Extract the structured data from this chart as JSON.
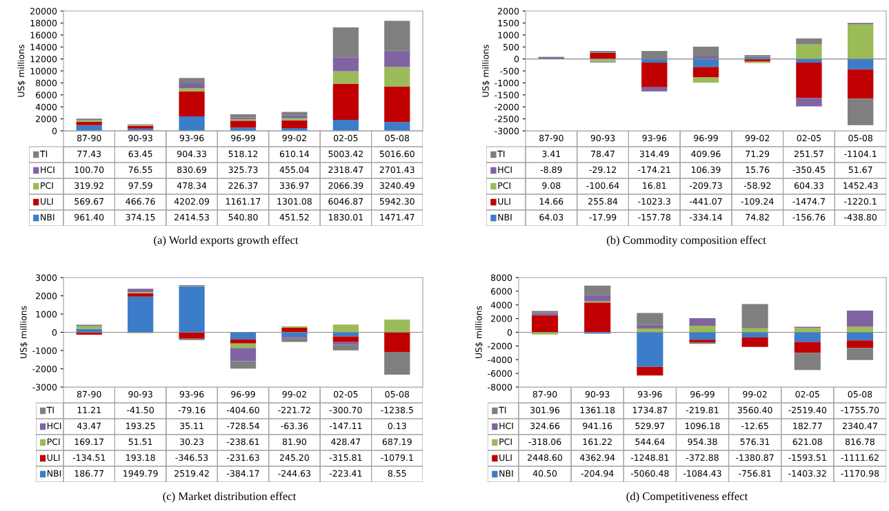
{
  "chart_data": [
    {
      "type": "bar",
      "stacked": true,
      "legend": "bottom left",
      "title": "(a) World exports growth effect",
      "ylabel": "US$ millions",
      "categories": [
        "87-90",
        "90-93",
        "93-96",
        "96-99",
        "99-02",
        "02-05",
        "05-08"
      ],
      "ylim": [
        0,
        20000
      ],
      "yticks": [
        0,
        2000,
        4000,
        6000,
        8000,
        10000,
        12000,
        14000,
        16000,
        18000,
        20000
      ],
      "series": [
        {
          "name": "NBI",
          "color": "#3c7dc9",
          "values": [
            961.4,
            374.15,
            2414.53,
            540.8,
            451.52,
            1830.01,
            1471.47
          ],
          "value_labels": [
            "961.40",
            "374.15",
            "2414.53",
            "540.80",
            "451.52",
            "1830.01",
            "1471.47"
          ]
        },
        {
          "name": "ULI",
          "color": "#c00000",
          "values": [
            569.67,
            466.76,
            4202.09,
            1161.17,
            1301.08,
            6046.87,
            5942.3
          ],
          "value_labels": [
            "569.67",
            "466.76",
            "4202.09",
            "1161.17",
            "1301.08",
            "6046.87",
            "5942.30"
          ]
        },
        {
          "name": "PCI",
          "color": "#9bbb59",
          "values": [
            319.92,
            97.59,
            478.34,
            226.37,
            336.97,
            2066.39,
            3240.49
          ],
          "value_labels": [
            "319.92",
            "97.59",
            "478.34",
            "226.37",
            "336.97",
            "2066.39",
            "3240.49"
          ]
        },
        {
          "name": "HCI",
          "color": "#8064a2",
          "values": [
            100.7,
            76.55,
            830.69,
            325.73,
            455.04,
            2318.47,
            2701.43
          ],
          "value_labels": [
            "100.70",
            "76.55",
            "830.69",
            "325.73",
            "455.04",
            "2318.47",
            "2701.43"
          ]
        },
        {
          "name": "TI",
          "color": "#7f7f7f",
          "values": [
            77.43,
            63.45,
            904.33,
            518.12,
            610.14,
            5003.42,
            5016.6
          ],
          "value_labels": [
            "77.43",
            "63.45",
            "904.33",
            "518.12",
            "610.14",
            "5003.42",
            "5016.60"
          ]
        }
      ]
    },
    {
      "type": "bar",
      "stacked": true,
      "legend": "bottom left",
      "title": "(b) Commodity composition effect",
      "ylabel": "US$ millions",
      "categories": [
        "87-90",
        "90-93",
        "93-96",
        "96-99",
        "99-02",
        "02-05",
        "05-08"
      ],
      "ylim": [
        -3000,
        2000
      ],
      "yticks": [
        -3000,
        -2500,
        -2000,
        -1500,
        -1000,
        -500,
        0,
        500,
        1000,
        1500,
        2000
      ],
      "series": [
        {
          "name": "NBI",
          "color": "#3c7dc9",
          "values": [
            64.03,
            -17.99,
            -157.78,
            -334.14,
            74.82,
            -156.76,
            -438.8
          ],
          "value_labels": [
            "64.03",
            "-17.99",
            "-157.78",
            "-334.14",
            "74.82",
            "-156.76",
            "-438.80"
          ]
        },
        {
          "name": "ULI",
          "color": "#c00000",
          "values": [
            14.66,
            255.84,
            -1023.3,
            -441.07,
            -109.24,
            -1474.7,
            -1220.1
          ],
          "value_labels": [
            "14.66",
            "255.84",
            "-1023.3",
            "-441.07",
            "-109.24",
            "-1474.7",
            "-1220.1"
          ]
        },
        {
          "name": "PCI",
          "color": "#9bbb59",
          "values": [
            9.08,
            -100.64,
            16.81,
            -209.73,
            -58.92,
            604.33,
            1452.43
          ],
          "value_labels": [
            "9.08",
            "-100.64",
            "16.81",
            "-209.73",
            "-58.92",
            "604.33",
            "1452.43"
          ]
        },
        {
          "name": "HCI",
          "color": "#8064a2",
          "values": [
            -8.89,
            -29.12,
            -174.21,
            106.39,
            15.76,
            -350.45,
            51.67
          ],
          "value_labels": [
            "-8.89",
            "-29.12",
            "-174.21",
            "106.39",
            "15.76",
            "-350.45",
            "51.67"
          ]
        },
        {
          "name": "TI",
          "color": "#7f7f7f",
          "values": [
            3.41,
            78.47,
            314.49,
            409.96,
            71.29,
            251.57,
            -1104.1
          ],
          "value_labels": [
            "3.41",
            "78.47",
            "314.49",
            "409.96",
            "71.29",
            "251.57",
            "-1104.1"
          ]
        }
      ]
    },
    {
      "type": "bar",
      "stacked": true,
      "legend": "bottom left",
      "title": "(c) Market distribution effect",
      "ylabel": "US$ millions",
      "categories": [
        "87-90",
        "90-93",
        "93-96",
        "96-99",
        "99-02",
        "02-05",
        "05-08"
      ],
      "ylim": [
        -3000,
        3000
      ],
      "yticks": [
        -3000,
        -2000,
        -1000,
        0,
        1000,
        2000,
        3000
      ],
      "series": [
        {
          "name": "NBI",
          "color": "#3c7dc9",
          "values": [
            186.77,
            1949.79,
            2519.42,
            -384.17,
            -244.63,
            -223.41,
            8.55
          ],
          "value_labels": [
            "186.77",
            "1949.79",
            "2519.42",
            "-384.17",
            "-244.63",
            "-223.41",
            "8.55"
          ]
        },
        {
          "name": "ULI",
          "color": "#c00000",
          "values": [
            -134.51,
            193.18,
            -346.53,
            -231.63,
            245.2,
            -315.81,
            -1079.1
          ],
          "value_labels": [
            "-134.51",
            "193.18",
            "-346.53",
            "-231.63",
            "245.20",
            "-315.81",
            "-1079.1"
          ]
        },
        {
          "name": "PCI",
          "color": "#9bbb59",
          "values": [
            169.17,
            51.51,
            30.23,
            -238.61,
            81.9,
            428.47,
            687.19
          ],
          "value_labels": [
            "169.17",
            "51.51",
            "30.23",
            "-238.61",
            "81.90",
            "428.47",
            "687.19"
          ]
        },
        {
          "name": "HCI",
          "color": "#8064a2",
          "values": [
            43.47,
            193.25,
            35.11,
            -728.54,
            -63.36,
            -147.11,
            0.13
          ],
          "value_labels": [
            "43.47",
            "193.25",
            "35.11",
            "-728.54",
            "-63.36",
            "-147.11",
            "0.13"
          ]
        },
        {
          "name": "TI",
          "color": "#7f7f7f",
          "values": [
            11.21,
            -41.5,
            -79.16,
            -404.6,
            -221.72,
            -300.7,
            -1238.5
          ],
          "value_labels": [
            "11.21",
            "-41.50",
            "-79.16",
            "-404.60",
            "-221.72",
            "-300.70",
            "-1238.5"
          ]
        }
      ]
    },
    {
      "type": "bar",
      "stacked": true,
      "legend": "bottom left",
      "title": "(d) Competitiveness effect",
      "ylabel": "US$ millions",
      "categories": [
        "87-90",
        "90-93",
        "93-96",
        "96-99",
        "99-02",
        "02-05",
        "05-08"
      ],
      "ylim": [
        -8000,
        8000
      ],
      "yticks": [
        -8000,
        -6000,
        -4000,
        -2000,
        0,
        2000,
        4000,
        6000,
        8000
      ],
      "series": [
        {
          "name": "NBI",
          "color": "#3c7dc9",
          "values": [
            40.5,
            -204.94,
            -5060.48,
            -1084.43,
            -756.81,
            -1403.32,
            -1170.98
          ],
          "value_labels": [
            "40.50",
            "-204.94",
            "-5060.48",
            "-1084.43",
            "-756.81",
            "-1403.32",
            "-1170.98"
          ]
        },
        {
          "name": "ULI",
          "color": "#c00000",
          "values": [
            2448.6,
            4362.94,
            -1248.81,
            -372.88,
            -1380.87,
            -1593.51,
            -1111.62
          ],
          "value_labels": [
            "2448.60",
            "4362.94",
            "-1248.81",
            "-372.88",
            "-1380.87",
            "-1593.51",
            "-1111.62"
          ]
        },
        {
          "name": "PCI",
          "color": "#9bbb59",
          "values": [
            -318.06,
            161.22,
            544.64,
            954.38,
            576.31,
            621.08,
            816.78
          ],
          "value_labels": [
            "-318.06",
            "161.22",
            "544.64",
            "954.38",
            "576.31",
            "621.08",
            "816.78"
          ]
        },
        {
          "name": "HCI",
          "color": "#8064a2",
          "values": [
            324.66,
            941.16,
            529.97,
            1096.18,
            -12.65,
            182.77,
            2340.47
          ],
          "value_labels": [
            "324.66",
            "941.16",
            "529.97",
            "1096.18",
            "-12.65",
            "182.77",
            "2340.47"
          ]
        },
        {
          "name": "TI",
          "color": "#7f7f7f",
          "values": [
            301.96,
            1361.18,
            1734.87,
            -219.81,
            3560.4,
            -2519.4,
            -1755.7
          ],
          "value_labels": [
            "301.96",
            "1361.18",
            "1734.87",
            "-219.81",
            "3560.40",
            "-2519.40",
            "-1755.70"
          ]
        }
      ]
    }
  ]
}
